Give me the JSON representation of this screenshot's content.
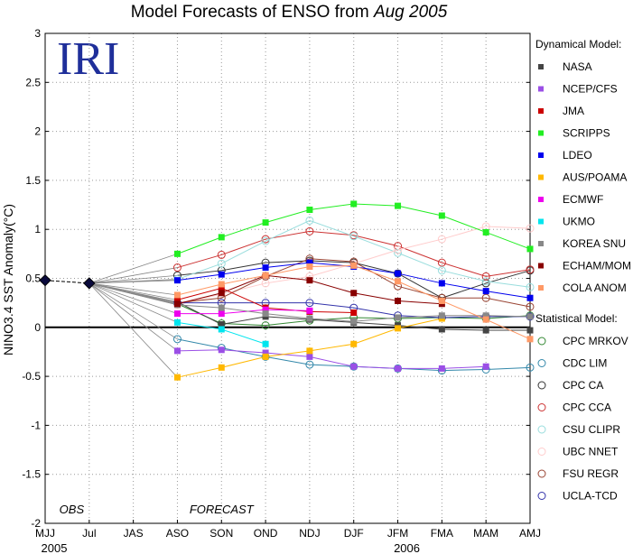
{
  "chart_data": {
    "type": "line",
    "title_prefix": "Model Forecasts of ENSO from ",
    "title_italic": "Aug 2005",
    "ylabel": "NINO3.4 SST Anomaly(°C)",
    "ylim": [
      -2,
      3
    ],
    "yticks": [
      "-2",
      "-1.5",
      "-1",
      "-0.5",
      "0",
      "0.5",
      "1",
      "1.5",
      "2",
      "2.5",
      "3"
    ],
    "categories": [
      "MJJ",
      "Jul",
      "JAS",
      "ASO",
      "SON",
      "OND",
      "NDJ",
      "DJF",
      "JFM",
      "FMA",
      "MAM",
      "AMJ"
    ],
    "year_labels": [
      {
        "text": "2005",
        "at": "MJJ"
      },
      {
        "text": "2006",
        "at": "JFM"
      }
    ],
    "annotations": {
      "obs": "OBS",
      "forecast": "FORECAST"
    },
    "logo": "IRI",
    "grid": true,
    "observed": {
      "x": [
        "MJJ",
        "Jul"
      ],
      "y": [
        0.48,
        0.45
      ]
    },
    "legend_headers": {
      "dynamical": "Dynamical Model:",
      "statistical": "Statistical Model:"
    },
    "dynamical_models": [
      {
        "name": "NASA",
        "color": "#444444",
        "y": [
          0.26,
          0.03,
          0.11,
          0.08,
          0.05,
          0.02,
          -0.02,
          -0.03,
          -0.03
        ]
      },
      {
        "name": "NCEP/CFS",
        "color": "#9b4fe6",
        "y": [
          -0.24,
          -0.23,
          -0.26,
          -0.3,
          -0.4,
          -0.42,
          -0.42,
          -0.4,
          null
        ]
      },
      {
        "name": "JMA",
        "color": "#cc0000",
        "y": [
          0.28,
          0.4,
          0.2,
          0.16,
          0.15,
          null,
          null,
          null,
          null
        ]
      },
      {
        "name": "SCRIPPS",
        "color": "#22ee22",
        "y": [
          0.75,
          0.92,
          1.07,
          1.2,
          1.26,
          1.24,
          1.14,
          0.97,
          0.8
        ]
      },
      {
        "name": "LDEO",
        "color": "#0000ee",
        "y": [
          0.48,
          0.54,
          0.61,
          0.66,
          0.62,
          0.55,
          0.45,
          0.37,
          0.3
        ]
      },
      {
        "name": "AUS/POAMA",
        "color": "#ffb800",
        "y": [
          -0.51,
          -0.41,
          -0.3,
          -0.24,
          -0.17,
          -0.01,
          0.09,
          null,
          null
        ]
      },
      {
        "name": "ECMWF",
        "color": "#ee00ee",
        "y": [
          0.14,
          0.14,
          0.18,
          0.17,
          null,
          null,
          null,
          null,
          null
        ]
      },
      {
        "name": "UKMO",
        "color": "#00e5ee",
        "y": [
          0.05,
          -0.02,
          -0.17,
          null,
          null,
          null,
          null,
          null,
          null
        ]
      },
      {
        "name": "KOREA SNU",
        "color": "#888888",
        "y": [
          0.23,
          0.2,
          0.14,
          0.09,
          0.06,
          0.1,
          0.12,
          0.12,
          0.11
        ]
      },
      {
        "name": "ECHAM/MOM",
        "color": "#880000",
        "y": [
          0.24,
          0.35,
          0.53,
          0.48,
          0.35,
          0.27,
          0.24,
          null,
          null
        ]
      },
      {
        "name": "COLA ANOM",
        "color": "#ff9966",
        "y": [
          0.33,
          0.44,
          0.53,
          0.62,
          0.63,
          0.47,
          0.27,
          0.08,
          -0.12
        ]
      }
    ],
    "statistical_models": [
      {
        "name": "CPC MRKOV",
        "color": "#338833",
        "y": [
          0.24,
          0.04,
          0.02,
          0.07,
          0.1,
          0.09,
          0.1,
          0.09,
          0.12
        ]
      },
      {
        "name": "CDC LIM",
        "color": "#3388aa",
        "y": [
          -0.12,
          -0.21,
          -0.3,
          -0.38,
          -0.4,
          -0.42,
          -0.44,
          -0.43,
          -0.41
        ]
      },
      {
        "name": "CPC CA",
        "color": "#333333",
        "y": [
          0.53,
          0.58,
          0.66,
          0.68,
          0.66,
          0.55,
          0.3,
          0.45,
          0.58
        ]
      },
      {
        "name": "CPC CCA",
        "color": "#cc3333",
        "y": [
          0.61,
          0.74,
          0.9,
          0.98,
          0.94,
          0.83,
          0.66,
          0.52,
          0.59
        ]
      },
      {
        "name": "CSU CLIPR",
        "color": "#99dddd",
        "y": [
          0.49,
          0.65,
          0.88,
          1.09,
          0.93,
          0.76,
          0.58,
          0.47,
          0.41
        ]
      },
      {
        "name": "UBC NNET",
        "color": "#ffcccc",
        "y": [
          0.23,
          0.34,
          0.45,
          0.52,
          0.65,
          0.79,
          0.9,
          1.03,
          1.01
        ]
      },
      {
        "name": "FSU REGR",
        "color": "#994433",
        "y": [
          0.25,
          0.3,
          0.52,
          0.7,
          0.67,
          0.42,
          0.3,
          0.3,
          0.21
        ]
      },
      {
        "name": "UCLA-TCD",
        "color": "#3333aa",
        "y": [
          0.25,
          0.25,
          0.25,
          0.25,
          0.2,
          0.12,
          0.1,
          0.11,
          0.11
        ]
      }
    ]
  }
}
